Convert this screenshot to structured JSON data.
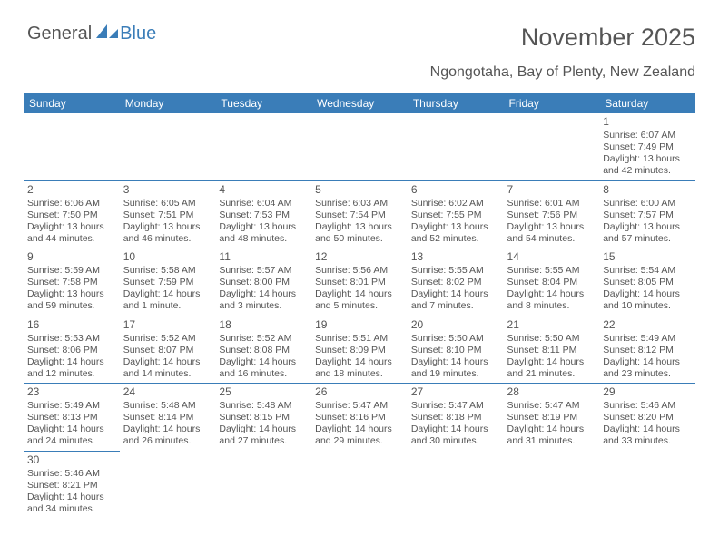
{
  "logo": {
    "text1": "General",
    "text2": "Blue"
  },
  "title": "November 2025",
  "subtitle": "Ngongotaha, Bay of Plenty, New Zealand",
  "colors": {
    "header_bg": "#3a7db8",
    "header_text": "#ffffff",
    "body_text": "#555555",
    "divider": "#3a7db8",
    "background": "#ffffff"
  },
  "fontsizes": {
    "title": 27,
    "subtitle": 16,
    "dayheader": 12,
    "daynum": 12,
    "cell": 10.5
  },
  "day_headers": [
    "Sunday",
    "Monday",
    "Tuesday",
    "Wednesday",
    "Thursday",
    "Friday",
    "Saturday"
  ],
  "weeks": [
    [
      null,
      null,
      null,
      null,
      null,
      null,
      {
        "n": "1",
        "sr": "Sunrise: 6:07 AM",
        "ss": "Sunset: 7:49 PM",
        "d1": "Daylight: 13 hours",
        "d2": "and 42 minutes."
      }
    ],
    [
      {
        "n": "2",
        "sr": "Sunrise: 6:06 AM",
        "ss": "Sunset: 7:50 PM",
        "d1": "Daylight: 13 hours",
        "d2": "and 44 minutes."
      },
      {
        "n": "3",
        "sr": "Sunrise: 6:05 AM",
        "ss": "Sunset: 7:51 PM",
        "d1": "Daylight: 13 hours",
        "d2": "and 46 minutes."
      },
      {
        "n": "4",
        "sr": "Sunrise: 6:04 AM",
        "ss": "Sunset: 7:53 PM",
        "d1": "Daylight: 13 hours",
        "d2": "and 48 minutes."
      },
      {
        "n": "5",
        "sr": "Sunrise: 6:03 AM",
        "ss": "Sunset: 7:54 PM",
        "d1": "Daylight: 13 hours",
        "d2": "and 50 minutes."
      },
      {
        "n": "6",
        "sr": "Sunrise: 6:02 AM",
        "ss": "Sunset: 7:55 PM",
        "d1": "Daylight: 13 hours",
        "d2": "and 52 minutes."
      },
      {
        "n": "7",
        "sr": "Sunrise: 6:01 AM",
        "ss": "Sunset: 7:56 PM",
        "d1": "Daylight: 13 hours",
        "d2": "and 54 minutes."
      },
      {
        "n": "8",
        "sr": "Sunrise: 6:00 AM",
        "ss": "Sunset: 7:57 PM",
        "d1": "Daylight: 13 hours",
        "d2": "and 57 minutes."
      }
    ],
    [
      {
        "n": "9",
        "sr": "Sunrise: 5:59 AM",
        "ss": "Sunset: 7:58 PM",
        "d1": "Daylight: 13 hours",
        "d2": "and 59 minutes."
      },
      {
        "n": "10",
        "sr": "Sunrise: 5:58 AM",
        "ss": "Sunset: 7:59 PM",
        "d1": "Daylight: 14 hours",
        "d2": "and 1 minute."
      },
      {
        "n": "11",
        "sr": "Sunrise: 5:57 AM",
        "ss": "Sunset: 8:00 PM",
        "d1": "Daylight: 14 hours",
        "d2": "and 3 minutes."
      },
      {
        "n": "12",
        "sr": "Sunrise: 5:56 AM",
        "ss": "Sunset: 8:01 PM",
        "d1": "Daylight: 14 hours",
        "d2": "and 5 minutes."
      },
      {
        "n": "13",
        "sr": "Sunrise: 5:55 AM",
        "ss": "Sunset: 8:02 PM",
        "d1": "Daylight: 14 hours",
        "d2": "and 7 minutes."
      },
      {
        "n": "14",
        "sr": "Sunrise: 5:55 AM",
        "ss": "Sunset: 8:04 PM",
        "d1": "Daylight: 14 hours",
        "d2": "and 8 minutes."
      },
      {
        "n": "15",
        "sr": "Sunrise: 5:54 AM",
        "ss": "Sunset: 8:05 PM",
        "d1": "Daylight: 14 hours",
        "d2": "and 10 minutes."
      }
    ],
    [
      {
        "n": "16",
        "sr": "Sunrise: 5:53 AM",
        "ss": "Sunset: 8:06 PM",
        "d1": "Daylight: 14 hours",
        "d2": "and 12 minutes."
      },
      {
        "n": "17",
        "sr": "Sunrise: 5:52 AM",
        "ss": "Sunset: 8:07 PM",
        "d1": "Daylight: 14 hours",
        "d2": "and 14 minutes."
      },
      {
        "n": "18",
        "sr": "Sunrise: 5:52 AM",
        "ss": "Sunset: 8:08 PM",
        "d1": "Daylight: 14 hours",
        "d2": "and 16 minutes."
      },
      {
        "n": "19",
        "sr": "Sunrise: 5:51 AM",
        "ss": "Sunset: 8:09 PM",
        "d1": "Daylight: 14 hours",
        "d2": "and 18 minutes."
      },
      {
        "n": "20",
        "sr": "Sunrise: 5:50 AM",
        "ss": "Sunset: 8:10 PM",
        "d1": "Daylight: 14 hours",
        "d2": "and 19 minutes."
      },
      {
        "n": "21",
        "sr": "Sunrise: 5:50 AM",
        "ss": "Sunset: 8:11 PM",
        "d1": "Daylight: 14 hours",
        "d2": "and 21 minutes."
      },
      {
        "n": "22",
        "sr": "Sunrise: 5:49 AM",
        "ss": "Sunset: 8:12 PM",
        "d1": "Daylight: 14 hours",
        "d2": "and 23 minutes."
      }
    ],
    [
      {
        "n": "23",
        "sr": "Sunrise: 5:49 AM",
        "ss": "Sunset: 8:13 PM",
        "d1": "Daylight: 14 hours",
        "d2": "and 24 minutes."
      },
      {
        "n": "24",
        "sr": "Sunrise: 5:48 AM",
        "ss": "Sunset: 8:14 PM",
        "d1": "Daylight: 14 hours",
        "d2": "and 26 minutes."
      },
      {
        "n": "25",
        "sr": "Sunrise: 5:48 AM",
        "ss": "Sunset: 8:15 PM",
        "d1": "Daylight: 14 hours",
        "d2": "and 27 minutes."
      },
      {
        "n": "26",
        "sr": "Sunrise: 5:47 AM",
        "ss": "Sunset: 8:16 PM",
        "d1": "Daylight: 14 hours",
        "d2": "and 29 minutes."
      },
      {
        "n": "27",
        "sr": "Sunrise: 5:47 AM",
        "ss": "Sunset: 8:18 PM",
        "d1": "Daylight: 14 hours",
        "d2": "and 30 minutes."
      },
      {
        "n": "28",
        "sr": "Sunrise: 5:47 AM",
        "ss": "Sunset: 8:19 PM",
        "d1": "Daylight: 14 hours",
        "d2": "and 31 minutes."
      },
      {
        "n": "29",
        "sr": "Sunrise: 5:46 AM",
        "ss": "Sunset: 8:20 PM",
        "d1": "Daylight: 14 hours",
        "d2": "and 33 minutes."
      }
    ],
    [
      {
        "n": "30",
        "sr": "Sunrise: 5:46 AM",
        "ss": "Sunset: 8:21 PM",
        "d1": "Daylight: 14 hours",
        "d2": "and 34 minutes."
      },
      null,
      null,
      null,
      null,
      null,
      null
    ]
  ]
}
